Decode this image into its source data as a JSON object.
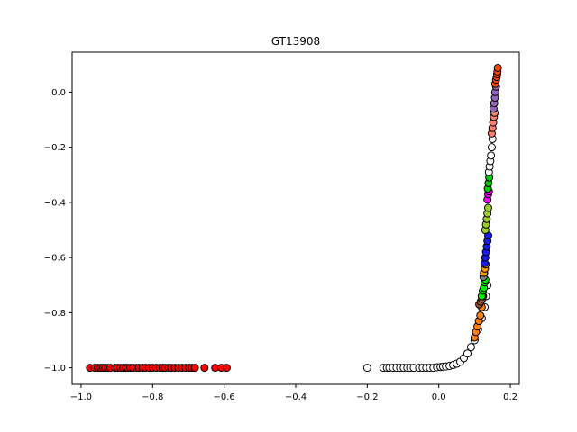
{
  "chart_data": {
    "type": "scatter",
    "title": "GT13908",
    "xlabel": "",
    "ylabel": "",
    "xlim": [
      -1.025,
      0.225
    ],
    "ylim": [
      -1.06,
      0.145
    ],
    "xticks": [
      -1.0,
      -0.8,
      -0.6,
      -0.4,
      -0.2,
      0.0,
      0.2
    ],
    "xtick_labels": [
      "−1.0",
      "−0.8",
      "−0.6",
      "−0.4",
      "−0.2",
      "0.0",
      "0.2"
    ],
    "yticks": [
      0.0,
      -0.2,
      -0.4,
      -0.6,
      -0.8,
      -1.0
    ],
    "ytick_labels": [
      "0.0",
      "−0.2",
      "−0.4",
      "−0.6",
      "−0.8",
      "−1.0"
    ],
    "grid": false,
    "legend": false,
    "marker_edge_color": "#000000",
    "series": [
      {
        "color": "#ff0000",
        "x": [
          -0.975,
          -0.962,
          -0.953,
          -0.945,
          -0.938,
          -0.932,
          -0.925,
          -0.918,
          -0.905,
          -0.898,
          -0.89,
          -0.882,
          -0.875,
          -0.87,
          -0.862,
          -0.855,
          -0.845,
          -0.838,
          -0.828,
          -0.82,
          -0.81,
          -0.8,
          -0.79,
          -0.78,
          -0.772,
          -0.765,
          -0.755,
          -0.748,
          -0.738,
          -0.728,
          -0.718,
          -0.708,
          -0.698,
          -0.69,
          -0.682,
          -0.655,
          -0.625,
          -0.608,
          -0.593
        ],
        "y": [
          -1,
          -1,
          -1,
          -1,
          -1,
          -1,
          -1,
          -1,
          -1,
          -1,
          -1,
          -1,
          -1,
          -1,
          -1,
          -1,
          -1,
          -1,
          -1,
          -1,
          -1,
          -1,
          -1,
          -1,
          -1,
          -1,
          -1,
          -1,
          -1,
          -1,
          -1,
          -1,
          -1,
          -1,
          -1,
          -1,
          -1,
          -1,
          -1
        ]
      },
      {
        "color": "#ffffff",
        "x": [
          -0.2,
          -0.155,
          -0.145,
          -0.138,
          -0.128,
          -0.118,
          -0.108,
          -0.098,
          -0.088,
          -0.08,
          -0.07,
          -0.055,
          -0.045,
          -0.035,
          -0.025,
          -0.015,
          -0.005,
          0.005,
          0.012,
          0.02,
          0.03,
          0.04,
          0.05,
          0.06,
          0.07,
          0.08,
          0.09,
          0.1,
          0.11,
          0.12,
          0.128,
          0.132,
          0.136
        ],
        "y": [
          -1,
          -1,
          -1,
          -1,
          -1,
          -1,
          -1,
          -1,
          -1,
          -1,
          -1,
          -1,
          -1,
          -1,
          -1,
          -1,
          -0.998,
          -0.997,
          -0.996,
          -0.995,
          -0.993,
          -0.99,
          -0.985,
          -0.978,
          -0.965,
          -0.948,
          -0.925,
          -0.9,
          -0.86,
          -0.82,
          -0.78,
          -0.74,
          -0.7
        ]
      },
      {
        "color": "#ff7f0e",
        "x": [
          0.1,
          0.104,
          0.108,
          0.112,
          0.116,
          0.12
        ],
        "y": [
          -0.89,
          -0.87,
          -0.85,
          -0.83,
          -0.81,
          -0.78
        ]
      },
      {
        "color": "#a0522d",
        "x": [
          0.113,
          0.117,
          0.121,
          0.124
        ],
        "y": [
          -0.77,
          -0.76,
          -0.75,
          -0.74
        ]
      },
      {
        "color": "#00ee00",
        "x": [
          0.12,
          0.123,
          0.126,
          0.128,
          0.13
        ],
        "y": [
          -0.74,
          -0.72,
          -0.71,
          -0.69,
          -0.68
        ]
      },
      {
        "color": "#808080",
        "x": [
          0.125,
          0.127,
          0.129
        ],
        "y": [
          -0.67,
          -0.655,
          -0.64
        ]
      },
      {
        "color": "#ff9900",
        "x": [
          0.126,
          0.129,
          0.131
        ],
        "y": [
          -0.655,
          -0.64,
          -0.625
        ]
      },
      {
        "color": "#1a1aee",
        "x": [
          0.128,
          0.13,
          0.132,
          0.134,
          0.136,
          0.138
        ],
        "y": [
          -0.62,
          -0.6,
          -0.58,
          -0.56,
          -0.54,
          -0.52
        ]
      },
      {
        "color": "#9acd32",
        "x": [
          0.13,
          0.132,
          0.134,
          0.136,
          0.138
        ],
        "y": [
          -0.5,
          -0.48,
          -0.46,
          -0.44,
          -0.42
        ]
      },
      {
        "color": "#ff00ff",
        "x": [
          0.136,
          0.138,
          0.14
        ],
        "y": [
          -0.39,
          -0.37,
          -0.36
        ]
      },
      {
        "color": "#00cc00",
        "x": [
          0.137,
          0.139,
          0.141
        ],
        "y": [
          -0.35,
          -0.33,
          -0.31
        ]
      },
      {
        "color": "#ffffff",
        "x": [
          0.14,
          0.142,
          0.144,
          0.146,
          0.148,
          0.15
        ],
        "y": [
          -0.29,
          -0.27,
          -0.25,
          -0.23,
          -0.2,
          -0.17
        ]
      },
      {
        "color": "#fa8072",
        "x": [
          0.148,
          0.15,
          0.152,
          0.154,
          0.156
        ],
        "y": [
          -0.15,
          -0.13,
          -0.11,
          -0.09,
          -0.075
        ]
      },
      {
        "color": "#9467bd",
        "x": [
          0.153,
          0.155,
          0.157,
          0.158,
          0.16
        ],
        "y": [
          -0.06,
          -0.04,
          -0.02,
          0.0,
          0.02
        ]
      },
      {
        "color": "#ff4500",
        "x": [
          0.158,
          0.16,
          0.162,
          0.163,
          0.164,
          0.165
        ],
        "y": [
          0.03,
          0.045,
          0.055,
          0.065,
          0.075,
          0.088
        ]
      }
    ]
  }
}
